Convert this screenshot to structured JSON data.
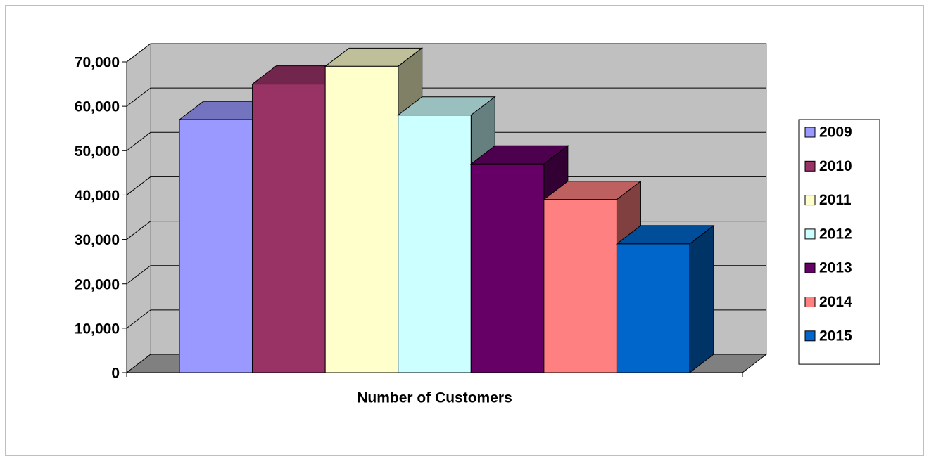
{
  "chart_data": {
    "type": "bar3d",
    "categories": [
      "Number of Customers"
    ],
    "series": [
      {
        "name": "2009",
        "color": "#9999ff",
        "values": [
          57000
        ]
      },
      {
        "name": "2010",
        "color": "#993366",
        "values": [
          65000
        ]
      },
      {
        "name": "2011",
        "color": "#ffffcc",
        "values": [
          69000
        ]
      },
      {
        "name": "2012",
        "color": "#ccffff",
        "values": [
          58000
        ]
      },
      {
        "name": "2013",
        "color": "#660066",
        "values": [
          47000
        ]
      },
      {
        "name": "2014",
        "color": "#ff8080",
        "values": [
          39000
        ]
      },
      {
        "name": "2015",
        "color": "#0066cc",
        "values": [
          29000
        ]
      }
    ],
    "ylim": [
      0,
      70000
    ],
    "yticks": [
      0,
      {
        "value": 10000,
        "label": "10,000"
      },
      {
        "value": 20000,
        "label": "20,000"
      },
      {
        "value": 30000,
        "label": "30,000"
      },
      {
        "value": 40000,
        "label": "40,000"
      },
      {
        "value": 50000,
        "label": "50,000"
      },
      {
        "value": 60000,
        "label": "60,000"
      },
      {
        "value": 70000,
        "label": "70,000"
      }
    ],
    "grid": true,
    "legend": "right"
  }
}
